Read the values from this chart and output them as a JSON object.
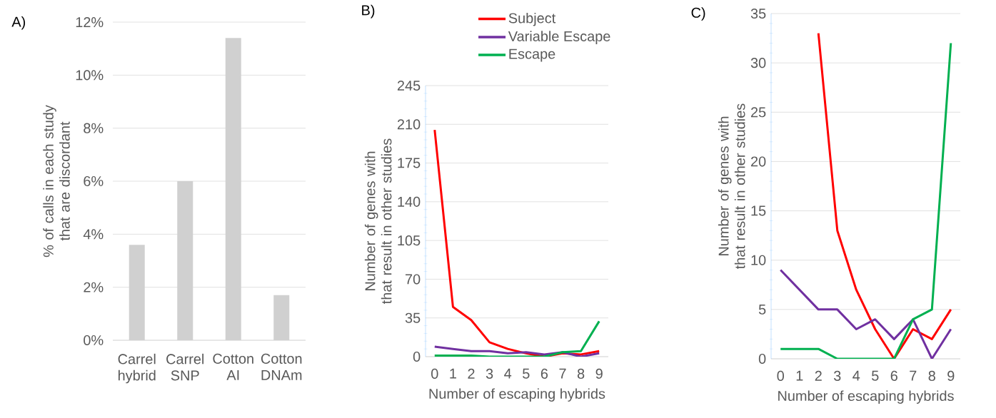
{
  "chart_data": [
    {
      "type": "bar",
      "title": "A)",
      "ylabel": "% of calls in each study that are discordant",
      "categories": [
        "Carrel hybrid",
        "Carrel SNP",
        "Cotton AI",
        "Cotton DNAm"
      ],
      "values": [
        3.6,
        6.0,
        11.4,
        1.7
      ],
      "color": "#d0d0d0",
      "ylim": [
        0,
        12
      ],
      "yticks": [
        {
          "value": 0,
          "label": "0%"
        },
        {
          "value": 2,
          "label": "2%"
        },
        {
          "value": 4,
          "label": "4%"
        },
        {
          "value": 6,
          "label": "6%"
        },
        {
          "value": 8,
          "label": "8%"
        },
        {
          "value": 10,
          "label": "10%"
        },
        {
          "value": 12,
          "label": "12%"
        }
      ],
      "grid": "y"
    },
    {
      "type": "line",
      "title": "B)",
      "xlabel": "Number of escaping hybrids",
      "ylabel": "Number of genes with that result in other studies",
      "categories": [
        "0",
        "1",
        "2",
        "3",
        "4",
        "5",
        "6",
        "7",
        "8",
        "9"
      ],
      "series": [
        {
          "name": "Subject",
          "color": "#ff0000",
          "values": [
            205,
            45,
            33,
            13,
            7,
            3,
            0,
            3,
            2,
            5
          ]
        },
        {
          "name": "Variable Escape",
          "color": "#7030a0",
          "values": [
            9,
            7,
            5,
            5,
            3,
            4,
            2,
            4,
            0,
            3
          ]
        },
        {
          "name": "Escape",
          "color": "#00b050",
          "values": [
            1,
            1,
            1,
            0,
            0,
            0,
            0,
            4,
            5,
            32
          ]
        }
      ],
      "ylim": [
        0,
        245
      ],
      "yticks": [
        0,
        35,
        70,
        105,
        140,
        175,
        210,
        245
      ],
      "grid": "y",
      "legend": "top"
    },
    {
      "type": "line",
      "title": "C)",
      "xlabel": "Number of escaping hybrids",
      "ylabel": "Number of genes with that result in other studies",
      "categories": [
        "0",
        "1",
        "2",
        "3",
        "4",
        "5",
        "6",
        "7",
        "8",
        "9"
      ],
      "series": [
        {
          "color": "#ff0000",
          "values": [
            null,
            null,
            33,
            13,
            7,
            3,
            0,
            3,
            2,
            5
          ]
        },
        {
          "color": "#7030a0",
          "values": [
            9,
            7,
            5,
            5,
            3,
            4,
            2,
            4,
            0,
            3
          ]
        },
        {
          "color": "#00b050",
          "values": [
            1,
            1,
            1,
            0,
            0,
            0,
            0,
            4,
            5,
            32
          ]
        }
      ],
      "ylim": [
        0,
        35
      ],
      "yticks": [
        0,
        5,
        10,
        15,
        20,
        25,
        30,
        35
      ],
      "grid": "y"
    }
  ]
}
